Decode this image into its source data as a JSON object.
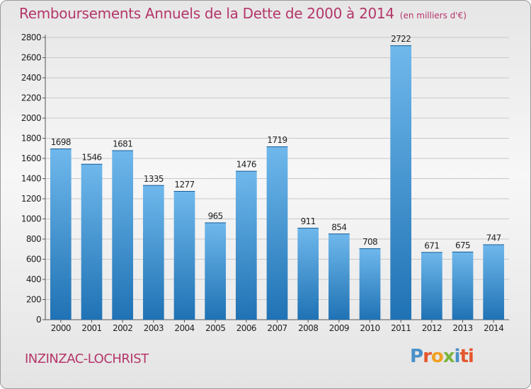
{
  "header": {
    "title": "Remboursements Annuels de la Dette de 2000 à 2014",
    "unit": "(en milliers d'€)"
  },
  "footer": {
    "commune": "INZINZAC-LOCHRIST",
    "logo": [
      "P",
      "r",
      "o",
      "x",
      "i",
      "ti"
    ]
  },
  "colors": {
    "title": "#b4366a",
    "bar_light": "#6fb8ec",
    "bar_dark": "#1f72b4",
    "grid": "#c8c8c8"
  },
  "chart_data": {
    "type": "bar",
    "title": "Remboursements Annuels de la Dette de 2000 à 2014",
    "categories": [
      "2000",
      "2001",
      "2002",
      "2003",
      "2004",
      "2005",
      "2006",
      "2007",
      "2008",
      "2009",
      "2010",
      "2011",
      "2012",
      "2013",
      "2014"
    ],
    "values": [
      1698,
      1546,
      1681,
      1335,
      1277,
      965,
      1476,
      1719,
      911,
      854,
      708,
      2722,
      671,
      675,
      747
    ],
    "ylim": [
      0,
      2800
    ],
    "yticks": [
      0,
      200,
      400,
      600,
      800,
      1000,
      1200,
      1400,
      1600,
      1800,
      2000,
      2200,
      2400,
      2600,
      2800
    ],
    "grid": true
  }
}
